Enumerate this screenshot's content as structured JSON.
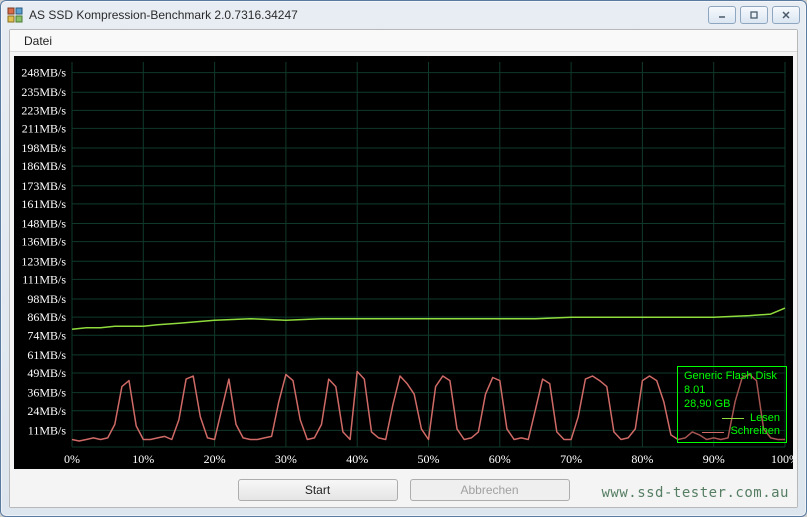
{
  "window": {
    "title": "AS SSD Kompression-Benchmark 2.0.7316.34247"
  },
  "menu": {
    "file": "Datei"
  },
  "buttons": {
    "start": "Start",
    "abort": "Abbrechen"
  },
  "watermark": "www.ssd-tester.com.au",
  "legend": {
    "device": "Generic Flash Disk",
    "version": "8.01",
    "capacity": "28,90 GB",
    "read_label": "Lesen",
    "write_label": "Schreiben"
  },
  "chart": {
    "type": "line",
    "background_color": "#000000",
    "grid_color": "#0f3a2a",
    "axis_text_color": "#ffffff",
    "axis_fontsize": 12,
    "x_unit": "%",
    "y_unit": "MB/s",
    "xlim": [
      0,
      100
    ],
    "xtick_step": 10,
    "xticks": [
      "0%",
      "10%",
      "20%",
      "30%",
      "40%",
      "50%",
      "60%",
      "70%",
      "80%",
      "90%",
      "100%"
    ],
    "ylim": [
      0,
      255
    ],
    "yticks": [
      11,
      24,
      36,
      49,
      61,
      74,
      86,
      98,
      111,
      123,
      136,
      148,
      161,
      173,
      186,
      198,
      211,
      223,
      235,
      248
    ],
    "ytick_labels": [
      "11MB/s",
      "24MB/s",
      "36MB/s",
      "49MB/s",
      "61MB/s",
      "74MB/s",
      "86MB/s",
      "98MB/s",
      "111MB/s",
      "123MB/s",
      "136MB/s",
      "148MB/s",
      "161MB/s",
      "173MB/s",
      "186MB/s",
      "198MB/s",
      "211MB/s",
      "223MB/s",
      "235MB/s",
      "248MB/s"
    ],
    "series": {
      "read": {
        "label": "Lesen",
        "color": "#8fdc3c",
        "line_width": 1.5,
        "x": [
          0,
          2,
          4,
          6,
          8,
          10,
          12,
          15,
          20,
          25,
          30,
          35,
          40,
          45,
          50,
          55,
          60,
          65,
          70,
          75,
          80,
          85,
          90,
          95,
          98,
          100
        ],
        "y": [
          78,
          79,
          79,
          80,
          80,
          80,
          81,
          82,
          84,
          85,
          84,
          85,
          85,
          85,
          85,
          85,
          85,
          85,
          86,
          86,
          86,
          86,
          86,
          87,
          88,
          92
        ]
      },
      "write": {
        "label": "Schreiben",
        "color": "#cf6a66",
        "line_width": 1.5,
        "x": [
          0,
          1,
          2,
          3,
          4,
          5,
          6,
          7,
          8,
          9,
          10,
          11,
          12,
          13,
          14,
          15,
          16,
          17,
          18,
          19,
          20,
          21,
          22,
          23,
          24,
          25,
          26,
          27,
          28,
          29,
          30,
          31,
          32,
          33,
          34,
          35,
          36,
          37,
          38,
          39,
          40,
          41,
          42,
          43,
          44,
          45,
          46,
          47,
          48,
          49,
          50,
          51,
          52,
          53,
          54,
          55,
          56,
          57,
          58,
          59,
          60,
          61,
          62,
          63,
          64,
          65,
          66,
          67,
          68,
          69,
          70,
          71,
          72,
          73,
          74,
          75,
          76,
          77,
          78,
          79,
          80,
          81,
          82,
          83,
          84,
          85,
          86,
          87,
          88,
          89,
          90,
          91,
          92,
          93,
          94,
          95,
          96,
          97,
          98,
          99,
          100
        ],
        "y": [
          5,
          4,
          5,
          6,
          5,
          6,
          15,
          40,
          44,
          14,
          5,
          5,
          6,
          7,
          5,
          18,
          45,
          47,
          20,
          6,
          5,
          25,
          45,
          15,
          6,
          5,
          5,
          6,
          7,
          30,
          48,
          44,
          18,
          5,
          6,
          15,
          45,
          40,
          10,
          5,
          50,
          45,
          10,
          6,
          5,
          28,
          47,
          42,
          35,
          12,
          5,
          40,
          47,
          44,
          12,
          5,
          6,
          10,
          35,
          46,
          44,
          12,
          5,
          6,
          5,
          25,
          45,
          42,
          10,
          5,
          5,
          20,
          45,
          47,
          44,
          40,
          10,
          5,
          6,
          12,
          44,
          47,
          44,
          30,
          8,
          5,
          6,
          10,
          8,
          5,
          6,
          5,
          6,
          30,
          46,
          48,
          44,
          12,
          6,
          5,
          5
        ]
      }
    }
  }
}
